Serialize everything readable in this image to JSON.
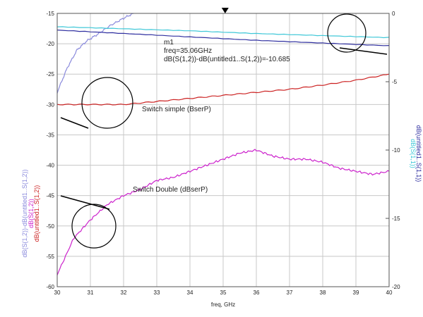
{
  "chart_data": {
    "type": "line",
    "xlabel": "freq, GHz",
    "xlim": [
      30,
      40
    ],
    "ylim_left": [
      -60,
      -15
    ],
    "ylim_right": [
      -20,
      0
    ],
    "x_ticks": [
      "30",
      "31",
      "32",
      "33",
      "34",
      "35",
      "36",
      "37",
      "38",
      "39",
      "40"
    ],
    "y_left_ticks": [
      "-15",
      "-20",
      "-25",
      "-30",
      "-35",
      "-40",
      "-45",
      "-50",
      "-55",
      "-60"
    ],
    "y_right_ticks": [
      "0",
      "-5",
      "-10",
      "-15",
      "-20"
    ],
    "grid": true,
    "left_axis_titles": [
      {
        "text": "dB(S(1,2))",
        "color": "#cc22cc"
      },
      {
        "text": "dB(S(1,2))-dB(untitled1..S(1,2))",
        "color": "#8a8adc"
      },
      {
        "text": "dB(untitled1..S(1,2))",
        "color": "#cc2222"
      }
    ],
    "right_axis_titles": [
      {
        "text": "dB(S(1,1))",
        "color": "#40c8d8"
      },
      {
        "text": "dB(untitled1..S(1,1))",
        "color": "#3030a0"
      }
    ],
    "marker": {
      "name": "m1",
      "freq_label": "freq=35.06GHz",
      "value_label": "dB(S(1,2))-dB(untitled1..S(1,2))=-10.685",
      "x": 35.06
    },
    "annotations": {
      "simple": "Switch simple (BserP)",
      "double": "Switch Double (dBserP)"
    },
    "series": [
      {
        "axis": "left",
        "color": "#cc2222",
        "x": [
          30,
          31,
          32,
          33,
          34,
          35,
          36,
          37,
          38,
          39,
          40
        ],
        "values": [
          -30.0,
          -30.0,
          -30.0,
          -29.5,
          -29.0,
          -28.5,
          -28.0,
          -27.5,
          -26.8,
          -26.0,
          -25.0
        ]
      },
      {
        "axis": "left",
        "color": "#cc22cc",
        "x": [
          30,
          30.5,
          31,
          31.5,
          32,
          32.5,
          33,
          33.5,
          34,
          34.5,
          35,
          35.5,
          36,
          36.5,
          37,
          37.5,
          38,
          38.5,
          39,
          39.5,
          40
        ],
        "values": [
          -58.0,
          -52.0,
          -49.0,
          -46.5,
          -45.0,
          -44.0,
          -42.5,
          -42.0,
          -41.0,
          -40.0,
          -39.0,
          -38.0,
          -37.5,
          -38.5,
          -39.0,
          -39.0,
          -39.5,
          -40.5,
          -41.0,
          -41.5,
          -41.0
        ]
      },
      {
        "axis": "left",
        "color": "#8a8adc",
        "x": [
          30,
          30.3,
          30.6,
          30.9,
          31.2,
          31.6,
          32.0,
          32.3
        ],
        "values": [
          -28.0,
          -24.0,
          -21.0,
          -19.5,
          -18.5,
          -17.0,
          -15.8,
          -15.0
        ]
      },
      {
        "axis": "right",
        "color": "#40c8d8",
        "x": [
          30,
          32,
          34,
          36,
          38,
          40
        ],
        "values": [
          -0.95,
          -1.1,
          -1.25,
          -1.45,
          -1.6,
          -1.75
        ]
      },
      {
        "axis": "right",
        "color": "#3030a0",
        "x": [
          30,
          32,
          34,
          36,
          38,
          40
        ],
        "values": [
          -1.2,
          -1.45,
          -1.7,
          -1.95,
          -2.15,
          -2.35
        ]
      }
    ]
  }
}
